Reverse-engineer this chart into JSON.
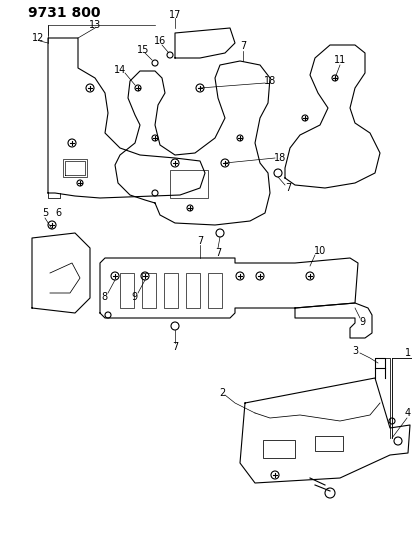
{
  "title": "9731 800",
  "bg_color": "#ffffff",
  "line_color": "#000000",
  "title_fontsize": 10,
  "label_fontsize": 7,
  "fig_width": 4.12,
  "fig_height": 5.33,
  "dpi": 100
}
